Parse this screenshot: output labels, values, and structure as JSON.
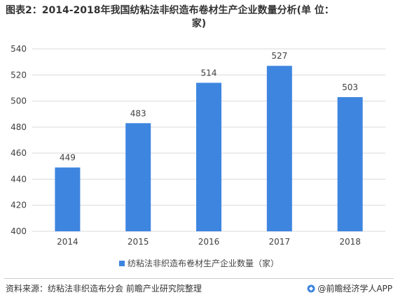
{
  "title_line1": "图表2：2014-2018年我国纺粘法非织造布卷材生产企业数量分析(单 位：",
  "title_line2": "家)",
  "legend_label": "纺粘法非织造布卷材生产企业数量（家）",
  "source": "资料来源：纺粘法非织造布分会 前瞻产业研究院整理",
  "brand": "@前瞻经济学人APP",
  "colors": {
    "bar": "#3e85e0",
    "grid": "#d9d9d9",
    "text": "#404040"
  },
  "chart_data": {
    "type": "bar",
    "categories": [
      "2014",
      "2015",
      "2016",
      "2017",
      "2018"
    ],
    "series": [
      {
        "name": "纺粘法非织造布卷材生产企业数量（家）",
        "values": [
          449,
          483,
          514,
          527,
          503
        ]
      }
    ],
    "ylim": [
      400,
      540
    ],
    "yticks": [
      400,
      420,
      440,
      460,
      480,
      500,
      520,
      540
    ],
    "grid": "horizontal",
    "legend_position": "bottom",
    "data_labels": true
  }
}
